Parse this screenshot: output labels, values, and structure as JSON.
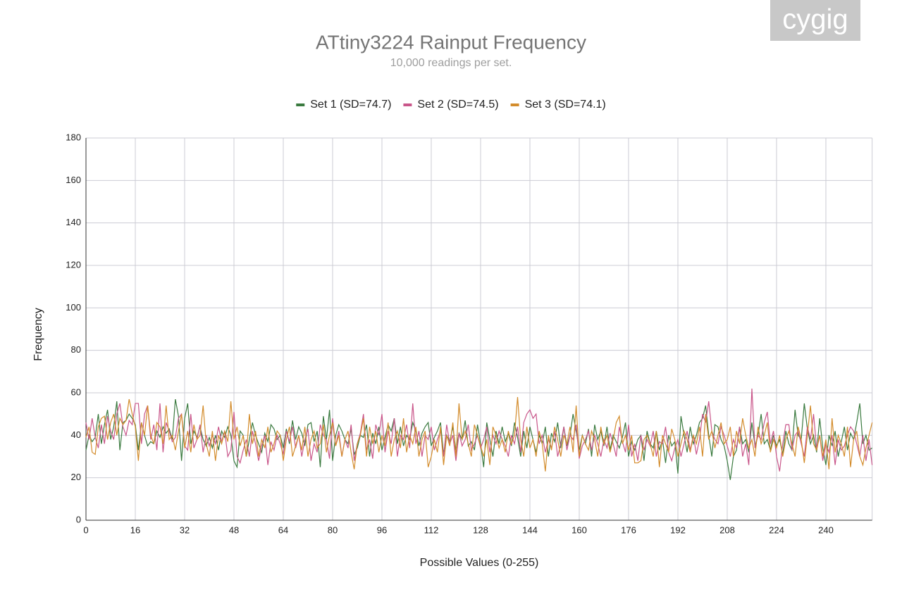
{
  "chart_data": {
    "type": "line",
    "title": "ATtiny3224 Rainput Frequency",
    "subtitle": "10,000 readings per set.",
    "watermark": "cygig",
    "xlabel": "Possible Values (0-255)",
    "ylabel": "Frequency",
    "legend": "top",
    "grid": true,
    "xlim": [
      0,
      255
    ],
    "ylim": [
      0,
      180
    ],
    "xticks": [
      0,
      16,
      32,
      48,
      64,
      80,
      96,
      112,
      128,
      144,
      160,
      176,
      192,
      208,
      224,
      240
    ],
    "yticks": [
      0,
      20,
      40,
      60,
      80,
      100,
      120,
      140,
      160,
      180
    ],
    "x": [
      0,
      1,
      2,
      3,
      4,
      5,
      6,
      7,
      8,
      9,
      10,
      11,
      12,
      13,
      14,
      15,
      16,
      17,
      18,
      19,
      20,
      21,
      22,
      23,
      24,
      25,
      26,
      27,
      28,
      29,
      30,
      31,
      32,
      33,
      34,
      35,
      36,
      37,
      38,
      39,
      40,
      41,
      42,
      43,
      44,
      45,
      46,
      47,
      48,
      49,
      50,
      51,
      52,
      53,
      54,
      55,
      56,
      57,
      58,
      59,
      60,
      61,
      62,
      63,
      64,
      65,
      66,
      67,
      68,
      69,
      70,
      71,
      72,
      73,
      74,
      75,
      76,
      77,
      78,
      79,
      80,
      81,
      82,
      83,
      84,
      85,
      86,
      87,
      88,
      89,
      90,
      91,
      92,
      93,
      94,
      95,
      96,
      97,
      98,
      99,
      100,
      101,
      102,
      103,
      104,
      105,
      106,
      107,
      108,
      109,
      110,
      111,
      112,
      113,
      114,
      115,
      116,
      117,
      118,
      119,
      120,
      121,
      122,
      123,
      124,
      125,
      126,
      127,
      128,
      129,
      130,
      131,
      132,
      133,
      134,
      135,
      136,
      137,
      138,
      139,
      140,
      141,
      142,
      143,
      144,
      145,
      146,
      147,
      148,
      149,
      150,
      151,
      152,
      153,
      154,
      155,
      156,
      157,
      158,
      159,
      160,
      161,
      162,
      163,
      164,
      165,
      166,
      167,
      168,
      169,
      170,
      171,
      172,
      173,
      174,
      175,
      176,
      177,
      178,
      179,
      180,
      181,
      182,
      183,
      184,
      185,
      186,
      187,
      188,
      189,
      190,
      191,
      192,
      193,
      194,
      195,
      196,
      197,
      198,
      199,
      200,
      201,
      202,
      203,
      204,
      205,
      206,
      207,
      208,
      209,
      210,
      211,
      212,
      213,
      214,
      215,
      216,
      217,
      218,
      219,
      220,
      221,
      222,
      223,
      224,
      225,
      226,
      227,
      228,
      229,
      230,
      231,
      232,
      233,
      234,
      235,
      236,
      237,
      238,
      239,
      240,
      241,
      242,
      243,
      244,
      245,
      246,
      247,
      248,
      249,
      250,
      251,
      252,
      253,
      254,
      255
    ],
    "series": [
      {
        "name": "Set 1 (SD=74.7)",
        "color": "#3a7a3f",
        "values": [
          33,
          40,
          37,
          39,
          50,
          36,
          45,
          52,
          38,
          44,
          56,
          33,
          46,
          47,
          50,
          48,
          45,
          33,
          46,
          40,
          35,
          37,
          36,
          42,
          39,
          44,
          41,
          43,
          38,
          57,
          49,
          28,
          48,
          55,
          36,
          42,
          39,
          44,
          38,
          35,
          39,
          34,
          40,
          33,
          42,
          39,
          44,
          40,
          28,
          25,
          42,
          40,
          30,
          38,
          46,
          40,
          36,
          32,
          41,
          37,
          45,
          43,
          38,
          40,
          34,
          43,
          36,
          47,
          38,
          44,
          41,
          35,
          45,
          46,
          37,
          42,
          25,
          49,
          38,
          52,
          28,
          40,
          45,
          42,
          38,
          36,
          43,
          31,
          34,
          40,
          39,
          45,
          30,
          41,
          36,
          44,
          33,
          39,
          45,
          42,
          48,
          36,
          44,
          35,
          40,
          38,
          46,
          42,
          35,
          41,
          44,
          46,
          35,
          39,
          42,
          46,
          31,
          40,
          37,
          44,
          33,
          41,
          38,
          47,
          35,
          37,
          33,
          45,
          36,
          25,
          46,
          38,
          30,
          42,
          36,
          44,
          37,
          41,
          35,
          46,
          39,
          30,
          42,
          34,
          44,
          38,
          32,
          40,
          36,
          44,
          30,
          41,
          37,
          46,
          34,
          44,
          35,
          40,
          50,
          42,
          33,
          40,
          36,
          43,
          30,
          45,
          38,
          42,
          35,
          44,
          33,
          40,
          37,
          34,
          39,
          46,
          30,
          37,
          33,
          38,
          40,
          28,
          42,
          36,
          34,
          42,
          33,
          38,
          27,
          40,
          35,
          37,
          22,
          49,
          40,
          32,
          44,
          36,
          40,
          46,
          48,
          54,
          40,
          30,
          45,
          44,
          38,
          35,
          28,
          19,
          30,
          33,
          44,
          36,
          38,
          32,
          46,
          35,
          40,
          50,
          36,
          38,
          33,
          40,
          35,
          38,
          31,
          42,
          36,
          33,
          52,
          40,
          38,
          55,
          43,
          36,
          40,
          32,
          48,
          34,
          26,
          40,
          35,
          42,
          30,
          37,
          44,
          33,
          41,
          38,
          46,
          55,
          36,
          40,
          33,
          34
        ]
      },
      {
        "name": "Set 2 (SD=74.5)",
        "color": "#c9568a",
        "values": [
          46,
          38,
          48,
          39,
          34,
          45,
          36,
          49,
          42,
          38,
          50,
          55,
          44,
          40,
          47,
          45,
          55,
          55,
          36,
          50,
          54,
          38,
          45,
          33,
          55,
          32,
          46,
          42,
          37,
          39,
          48,
          50,
          35,
          33,
          50,
          34,
          38,
          45,
          32,
          40,
          35,
          40,
          36,
          44,
          37,
          42,
          30,
          33,
          51,
          30,
          27,
          33,
          38,
          30,
          42,
          36,
          28,
          35,
          40,
          26,
          37,
          33,
          40,
          36,
          31,
          42,
          37,
          44,
          34,
          40,
          30,
          38,
          43,
          28,
          36,
          32,
          45,
          40,
          38,
          29,
          48,
          35,
          42,
          30,
          38,
          34,
          45,
          28,
          36,
          41,
          50,
          33,
          38,
          29,
          45,
          40,
          50,
          32,
          42,
          36,
          48,
          30,
          40,
          38,
          45,
          34,
          55,
          36,
          42,
          30,
          40,
          38,
          44,
          33,
          38,
          42,
          30,
          45,
          36,
          40,
          28,
          41,
          35,
          38,
          45,
          33,
          36,
          40,
          34,
          38,
          44,
          32,
          40,
          36,
          42,
          38,
          35,
          30,
          40,
          36,
          44,
          32,
          46,
          50,
          52,
          48,
          50,
          36,
          40,
          32,
          38,
          34,
          42,
          30,
          36,
          44,
          33,
          40,
          38,
          45,
          29,
          35,
          38,
          42,
          33,
          40,
          36,
          30,
          38,
          34,
          41,
          36,
          30,
          44,
          37,
          32,
          45,
          30,
          36,
          28,
          40,
          33,
          38,
          35,
          42,
          30,
          37,
          36,
          44,
          32,
          28,
          34,
          38,
          30,
          36,
          42,
          33,
          40,
          31,
          38,
          50,
          46,
          56,
          42,
          38,
          36,
          44,
          40,
          35,
          30,
          38,
          34,
          44,
          30,
          36,
          26,
          62,
          34,
          40,
          38,
          46,
          51,
          36,
          42,
          30,
          23,
          36,
          45,
          45,
          33,
          40,
          42,
          36,
          30,
          44,
          38,
          50,
          34,
          40,
          28,
          36,
          32,
          40,
          26,
          38,
          33,
          35,
          40,
          44,
          42,
          36,
          30,
          40,
          28,
          38,
          26
        ]
      },
      {
        "name": "Set 3 (SD=74.1)",
        "color": "#d38c2c",
        "values": [
          39,
          44,
          32,
          31,
          44,
          48,
          49,
          38,
          46,
          50,
          40,
          48,
          45,
          47,
          57,
          50,
          44,
          28,
          46,
          40,
          54,
          40,
          36,
          46,
          44,
          36,
          54,
          38,
          40,
          33,
          42,
          50,
          34,
          42,
          32,
          45,
          38,
          40,
          54,
          36,
          30,
          42,
          28,
          40,
          36,
          42,
          37,
          56,
          38,
          44,
          35,
          40,
          30,
          50,
          36,
          42,
          30,
          38,
          34,
          44,
          32,
          36,
          42,
          40,
          28,
          38,
          44,
          30,
          35,
          40,
          33,
          44,
          30,
          38,
          42,
          34,
          36,
          45,
          32,
          40,
          46,
          35,
          40,
          30,
          38,
          42,
          32,
          24,
          36,
          40,
          48,
          30,
          44,
          36,
          42,
          32,
          40,
          35,
          46,
          30,
          38,
          42,
          34,
          48,
          32,
          40,
          36,
          44,
          30,
          38,
          42,
          25,
          30,
          38,
          32,
          44,
          26,
          40,
          35,
          46,
          30,
          55,
          38,
          42,
          36,
          30,
          45,
          40,
          35,
          30,
          38,
          26,
          44,
          40,
          34,
          38,
          32,
          42,
          36,
          40,
          58,
          38,
          30,
          44,
          34,
          38,
          30,
          42,
          36,
          23,
          40,
          33,
          44,
          38,
          30,
          40,
          36,
          44,
          32,
          54,
          30,
          40,
          36,
          33,
          42,
          38,
          30,
          44,
          36,
          40,
          32,
          38,
          46,
          49,
          36,
          40,
          33,
          40,
          27,
          27,
          28,
          38,
          40,
          36,
          30,
          42,
          25,
          40,
          36,
          32,
          43,
          38,
          30,
          36,
          42,
          38,
          32,
          40,
          36,
          44,
          30,
          50,
          38,
          42,
          34,
          40,
          46,
          36,
          38,
          44,
          30,
          42,
          36,
          48,
          40,
          34,
          38,
          30,
          44,
          36,
          40,
          46,
          32,
          38,
          34,
          40,
          30,
          38,
          42,
          36,
          30,
          44,
          38,
          27,
          40,
          54,
          36,
          33,
          40,
          30,
          38,
          24,
          48,
          32,
          40,
          36,
          30,
          44,
          25,
          38,
          42,
          30,
          26,
          34,
          40,
          46
        ]
      }
    ]
  }
}
